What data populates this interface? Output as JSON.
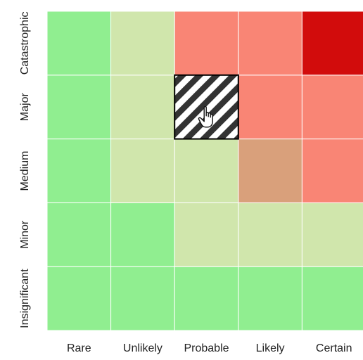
{
  "chart_data": {
    "type": "heatmap",
    "title": "",
    "xlabel": "",
    "ylabel": "",
    "x_categories": [
      "Rare",
      "Unlikely",
      "Probable",
      "Likely",
      "Certain"
    ],
    "y_categories": [
      "Insignificant",
      "Minor",
      "Medium",
      "Major",
      "Catastrophic"
    ],
    "cells": [
      [
        "low",
        "low",
        "low",
        "low",
        "low"
      ],
      [
        "low",
        "low",
        "moderate",
        "moderate",
        "moderate"
      ],
      [
        "low",
        "moderate",
        "moderate",
        "elevated",
        "high"
      ],
      [
        "low",
        "moderate",
        "selected",
        "high",
        "high"
      ],
      [
        "low",
        "moderate",
        "high",
        "high",
        "extreme"
      ]
    ],
    "level_colors": {
      "low": "#90EE90",
      "moderate": "#D0E6AC",
      "elevated": "#D9A07B",
      "high": "#F98575",
      "extreme": "#D20C0C"
    },
    "selected_cell": {
      "x": "Probable",
      "y": "Major"
    },
    "selection_style": {
      "pattern": "diagonal-stripes",
      "stripe_color": "#333333",
      "background": "#ffffff",
      "border": "#000000"
    },
    "cursor_icon": "hand-pointer-icon",
    "gridlines": false,
    "legend": "none"
  }
}
